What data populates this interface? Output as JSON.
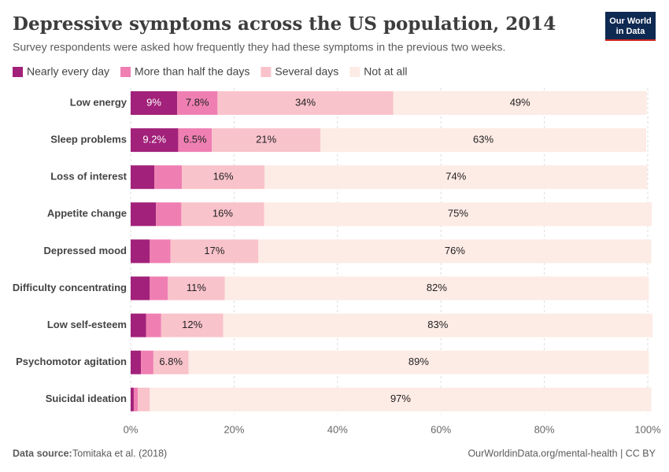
{
  "chart_data": {
    "type": "stacked-bar-horizontal",
    "title": "Depressive symptoms across the US population, 2014",
    "subtitle": "Survey respondents were asked how frequently they had these symptoms in the previous two weeks.",
    "logo": [
      "Our World",
      "in Data"
    ],
    "source_label": "Data source:",
    "source": "Tomitaka et al. (2018)",
    "footer_right": "OurWorldinData.org/mental-health | CC BY",
    "categories": [
      "Low energy",
      "Sleep problems",
      "Loss of interest",
      "Appetite change",
      "Depressed mood",
      "Difficulty concentrating",
      "Low self-esteem",
      "Psychomotor agitation",
      "Suicidal ideation"
    ],
    "series": [
      {
        "name": "Nearly every day",
        "color": "#a2217a",
        "label_color": "#ffffff",
        "values": [
          9,
          9.2,
          4.6,
          4.9,
          3.7,
          3.7,
          3.0,
          2.0,
          0.6
        ],
        "value_labels": [
          "9%",
          "9.2%",
          null,
          null,
          null,
          null,
          null,
          null,
          null
        ]
      },
      {
        "name": "More than half the days",
        "color": "#ef7fb2",
        "label_color": "#222222",
        "values": [
          7.8,
          6.5,
          5.3,
          4.9,
          4.0,
          3.5,
          2.9,
          2.4,
          0.8
        ],
        "value_labels": [
          "7.8%",
          "6.5%",
          null,
          null,
          null,
          null,
          null,
          null,
          null
        ]
      },
      {
        "name": "Several days",
        "color": "#f9c3cb",
        "label_color": "#222222",
        "values": [
          34,
          21,
          16,
          16,
          17,
          11,
          12,
          6.8,
          2.3
        ],
        "value_labels": [
          "34%",
          "21%",
          "16%",
          "16%",
          "17%",
          "11%",
          "12%",
          "6.8%",
          null
        ]
      },
      {
        "name": "Not at all",
        "color": "#fdebe5",
        "label_color": "#222222",
        "values": [
          49,
          63,
          74,
          75,
          76,
          82,
          83,
          89,
          97
        ],
        "value_labels": [
          "49%",
          "63%",
          "74%",
          "75%",
          "76%",
          "82%",
          "83%",
          "89%",
          "97%"
        ]
      }
    ],
    "xlim": [
      0,
      100
    ],
    "xticks": [
      {
        "value": 0,
        "label": "0%"
      },
      {
        "value": 20,
        "label": "20%"
      },
      {
        "value": 40,
        "label": "40%"
      },
      {
        "value": 60,
        "label": "60%"
      },
      {
        "value": 80,
        "label": "80%"
      },
      {
        "value": 100,
        "label": "100%"
      }
    ],
    "grid": true
  }
}
